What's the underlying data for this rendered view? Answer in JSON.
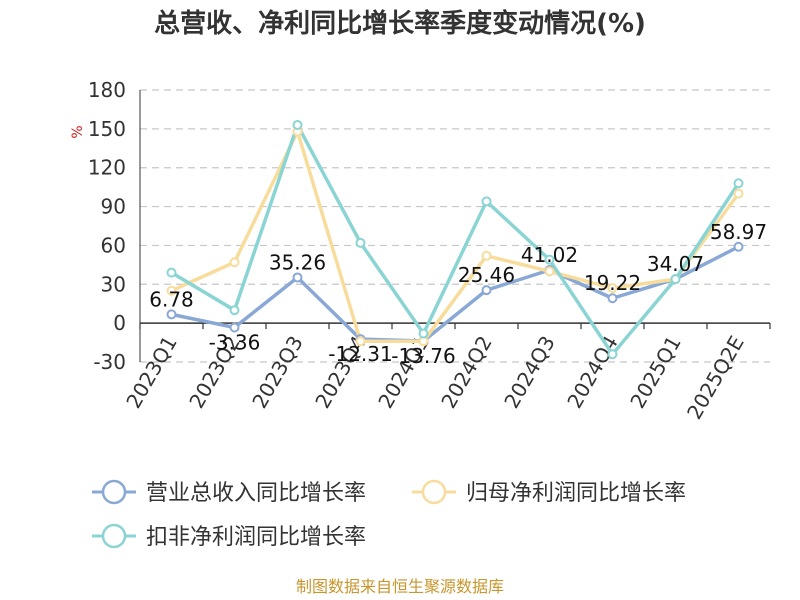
{
  "chart_data": {
    "type": "line",
    "title": "总营收、净利同比增长率季度变动情况(%)",
    "ylabel": "%",
    "ylim": [
      -30,
      180
    ],
    "yticks": [
      180,
      150,
      120,
      90,
      60,
      30,
      0,
      -30
    ],
    "grid": true,
    "legend_position": "bottom",
    "categories": [
      "2023Q1",
      "2023Q2",
      "2023Q3",
      "2023Q4",
      "2024Q1",
      "2024Q2",
      "2024Q3",
      "2024Q4",
      "2025Q1",
      "2025Q2E"
    ],
    "series": [
      {
        "name": "营业总收入同比增长率",
        "color": "#8aa8d6",
        "values": [
          6.78,
          -3.36,
          35.26,
          -12.31,
          -13.76,
          25.46,
          41.02,
          19.22,
          34.07,
          58.97
        ],
        "labels": [
          "6.78",
          "-3.36",
          "35.26",
          "-12.31",
          "-13.76",
          "25.46",
          "41.02",
          "19.22",
          "34.07",
          "58.97"
        ]
      },
      {
        "name": "归母净利润同比增长率",
        "color": "#f8dc9c",
        "values": [
          25,
          47,
          148,
          -14,
          -14,
          52,
          40,
          27,
          34,
          100
        ]
      },
      {
        "name": "扣非净利润同比增长率",
        "color": "#8ad4d4",
        "values": [
          39,
          10,
          153,
          62,
          -8,
          94,
          49,
          -24,
          34,
          108
        ]
      }
    ]
  },
  "source": "制图数据来自恒生聚源数据库"
}
